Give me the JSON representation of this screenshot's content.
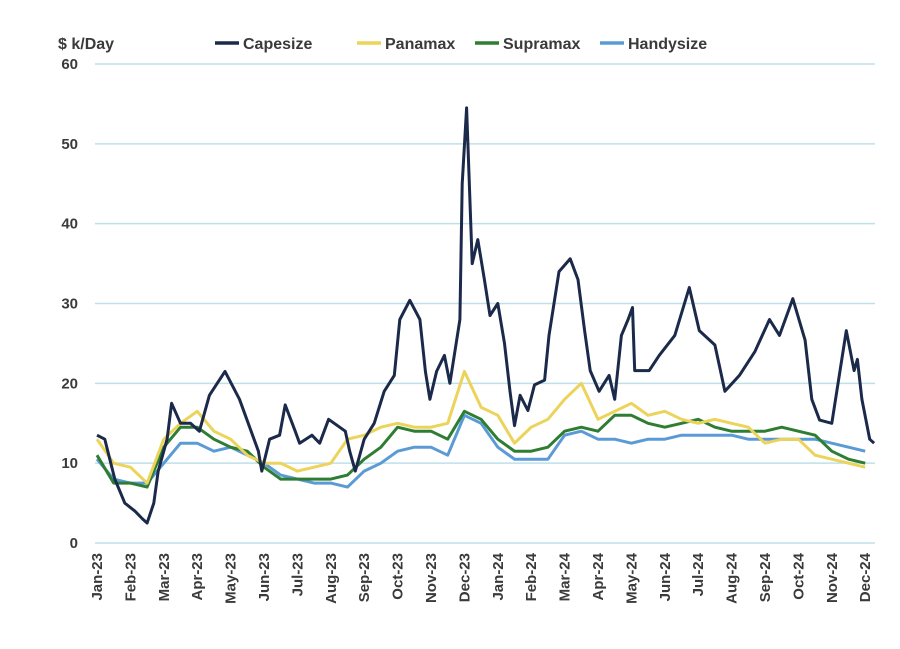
{
  "chart_data": {
    "type": "line",
    "title": "",
    "ylabel": "$ k/Day",
    "xlabel": "",
    "ylim": [
      0,
      60
    ],
    "yticks": [
      "0",
      "10",
      "20",
      "30",
      "40",
      "50",
      "60"
    ],
    "xticks": [
      "Jan-23",
      "Feb-23",
      "Mar-23",
      "Apr-23",
      "May-23",
      "Jun-23",
      "Jul-23",
      "Aug-23",
      "Sep-23",
      "Oct-23",
      "Nov-23",
      "Dec-23",
      "Jan-24",
      "Feb-24",
      "Mar-24",
      "Apr-24",
      "May-24",
      "Jun-24",
      "Jul-24",
      "Aug-24",
      "Sep-24",
      "Oct-24",
      "Nov-24",
      "Dec-24"
    ],
    "grid": "horizontal",
    "legend_position": "top",
    "series": [
      {
        "name": "Capesize",
        "color": "#1b2a4a",
        "x": [
          "2023-01-01",
          "2023-01-08",
          "2023-01-17",
          "2023-01-26",
          "2023-02-05",
          "2023-02-12",
          "2023-02-16",
          "2023-02-22",
          "2023-02-26",
          "2023-03-04",
          "2023-03-08",
          "2023-03-16",
          "2023-03-25",
          "2023-04-03",
          "2023-04-12",
          "2023-04-26",
          "2023-05-09",
          "2023-05-26",
          "2023-05-29",
          "2023-06-06",
          "2023-06-15",
          "2023-06-20",
          "2023-06-29",
          "2023-07-03",
          "2023-07-14",
          "2023-07-21",
          "2023-07-29",
          "2023-08-14",
          "2023-08-18",
          "2023-08-23",
          "2023-09-01",
          "2023-09-10",
          "2023-09-19",
          "2023-09-28",
          "2023-10-03",
          "2023-10-12",
          "2023-10-21",
          "2023-10-26",
          "2023-10-30",
          "2023-11-06",
          "2023-11-13",
          "2023-11-18",
          "2023-11-27",
          "2023-11-29",
          "2023-12-03",
          "2023-12-08",
          "2023-12-13",
          "2023-12-19",
          "2023-12-24",
          "2024-01-01",
          "2024-01-07",
          "2024-01-12",
          "2024-01-16",
          "2024-01-21",
          "2024-01-28",
          "2024-02-04",
          "2024-02-13",
          "2024-02-17",
          "2024-02-26",
          "2024-03-06",
          "2024-03-13",
          "2024-03-19",
          "2024-03-24",
          "2024-04-02",
          "2024-04-11",
          "2024-04-16",
          "2024-04-22",
          "2024-04-28",
          "2024-05-02",
          "2024-05-04",
          "2024-05-17",
          "2024-05-26",
          "2024-06-10",
          "2024-06-23",
          "2024-07-02",
          "2024-07-16",
          "2024-07-25",
          "2024-08-08",
          "2024-08-22",
          "2024-09-05",
          "2024-09-14",
          "2024-09-26",
          "2024-10-07",
          "2024-10-13",
          "2024-10-20",
          "2024-11-01",
          "2024-11-14",
          "2024-11-21",
          "2024-11-24",
          "2024-11-28",
          "2024-12-05",
          "2024-12-09"
        ],
        "values": [
          13.5,
          13,
          8,
          5,
          4,
          3,
          2.5,
          5,
          9,
          13,
          17.5,
          15,
          15,
          14,
          18.5,
          21.5,
          18,
          11.5,
          9,
          13,
          13.5,
          17.3,
          14,
          12.5,
          13.5,
          12.5,
          15.5,
          14,
          11.5,
          9,
          13,
          15,
          19,
          21,
          28,
          30.4,
          28,
          21.5,
          18,
          21.5,
          23.5,
          20,
          28,
          45,
          54.5,
          35,
          38,
          33,
          28.5,
          30,
          25,
          19,
          14.7,
          18.5,
          16.6,
          19.8,
          20.4,
          26,
          34,
          35.6,
          33,
          26.6,
          21.6,
          19,
          21,
          18,
          26,
          28,
          29.5,
          21.6,
          21.6,
          23.5,
          26,
          32,
          26.6,
          24.8,
          19,
          21,
          24,
          28,
          26,
          30.6,
          25.4,
          18,
          15.4,
          15,
          26.6,
          21.6,
          23,
          18,
          13,
          12.5
        ]
      },
      {
        "name": "Panamax",
        "color": "#ecd35a",
        "values": [
          13,
          10,
          9.5,
          7.5,
          13,
          15,
          16.5,
          14,
          13,
          11,
          10,
          10,
          9,
          9.5,
          10,
          13,
          13.5,
          14.5,
          15,
          14.5,
          14.5,
          15,
          21.5,
          17,
          16,
          12.5,
          14.5,
          15.5,
          18,
          20,
          15.5,
          16.5,
          17.5,
          16,
          16.5,
          15.5,
          15,
          15.5,
          15,
          14.5,
          12.5,
          13,
          13,
          11,
          10.5,
          10,
          9.5
        ]
      },
      {
        "name": "Supramax",
        "color": "#2e7d32",
        "values": [
          11,
          7.5,
          7.5,
          7,
          12,
          14.5,
          14.5,
          13,
          12,
          11.5,
          9.5,
          8,
          8,
          8,
          8,
          8.5,
          10.5,
          12,
          14.5,
          14,
          14,
          13,
          16.5,
          15.5,
          13,
          11.5,
          11.5,
          12,
          14,
          14.5,
          14,
          16,
          16,
          15,
          14.5,
          15,
          15.5,
          14.5,
          14,
          14,
          14,
          14.5,
          14,
          13.5,
          11.5,
          10.5,
          10
        ]
      },
      {
        "name": "Handysize",
        "color": "#5b9bd5",
        "values": [
          10.5,
          8,
          7.5,
          7.5,
          10,
          12.5,
          12.5,
          11.5,
          12,
          11,
          10,
          8.5,
          8,
          7.5,
          7.5,
          7,
          9,
          10,
          11.5,
          12,
          12,
          11,
          16,
          15,
          12,
          10.5,
          10.5,
          10.5,
          13.5,
          14,
          13,
          13,
          12.5,
          13,
          13,
          13.5,
          13.5,
          13.5,
          13.5,
          13,
          13,
          13,
          13,
          13,
          12.5,
          12,
          11.5
        ]
      }
    ],
    "shared_x": [
      "2023-01-01",
      "2023-01-16",
      "2023-02-01",
      "2023-02-16",
      "2023-03-01",
      "2023-03-16",
      "2023-04-01",
      "2023-04-16",
      "2023-05-01",
      "2023-05-16",
      "2023-06-01",
      "2023-06-16",
      "2023-07-01",
      "2023-07-16",
      "2023-08-01",
      "2023-08-16",
      "2023-09-01",
      "2023-09-16",
      "2023-10-01",
      "2023-10-16",
      "2023-11-01",
      "2023-11-16",
      "2023-12-01",
      "2023-12-16",
      "2024-01-01",
      "2024-01-16",
      "2024-02-01",
      "2024-02-16",
      "2024-03-01",
      "2024-03-16",
      "2024-04-01",
      "2024-04-16",
      "2024-05-01",
      "2024-05-16",
      "2024-06-01",
      "2024-06-16",
      "2024-07-01",
      "2024-07-16",
      "2024-08-01",
      "2024-08-16",
      "2024-09-01",
      "2024-09-16",
      "2024-10-01",
      "2024-10-16",
      "2024-11-01",
      "2024-11-16",
      "2024-12-01"
    ]
  }
}
